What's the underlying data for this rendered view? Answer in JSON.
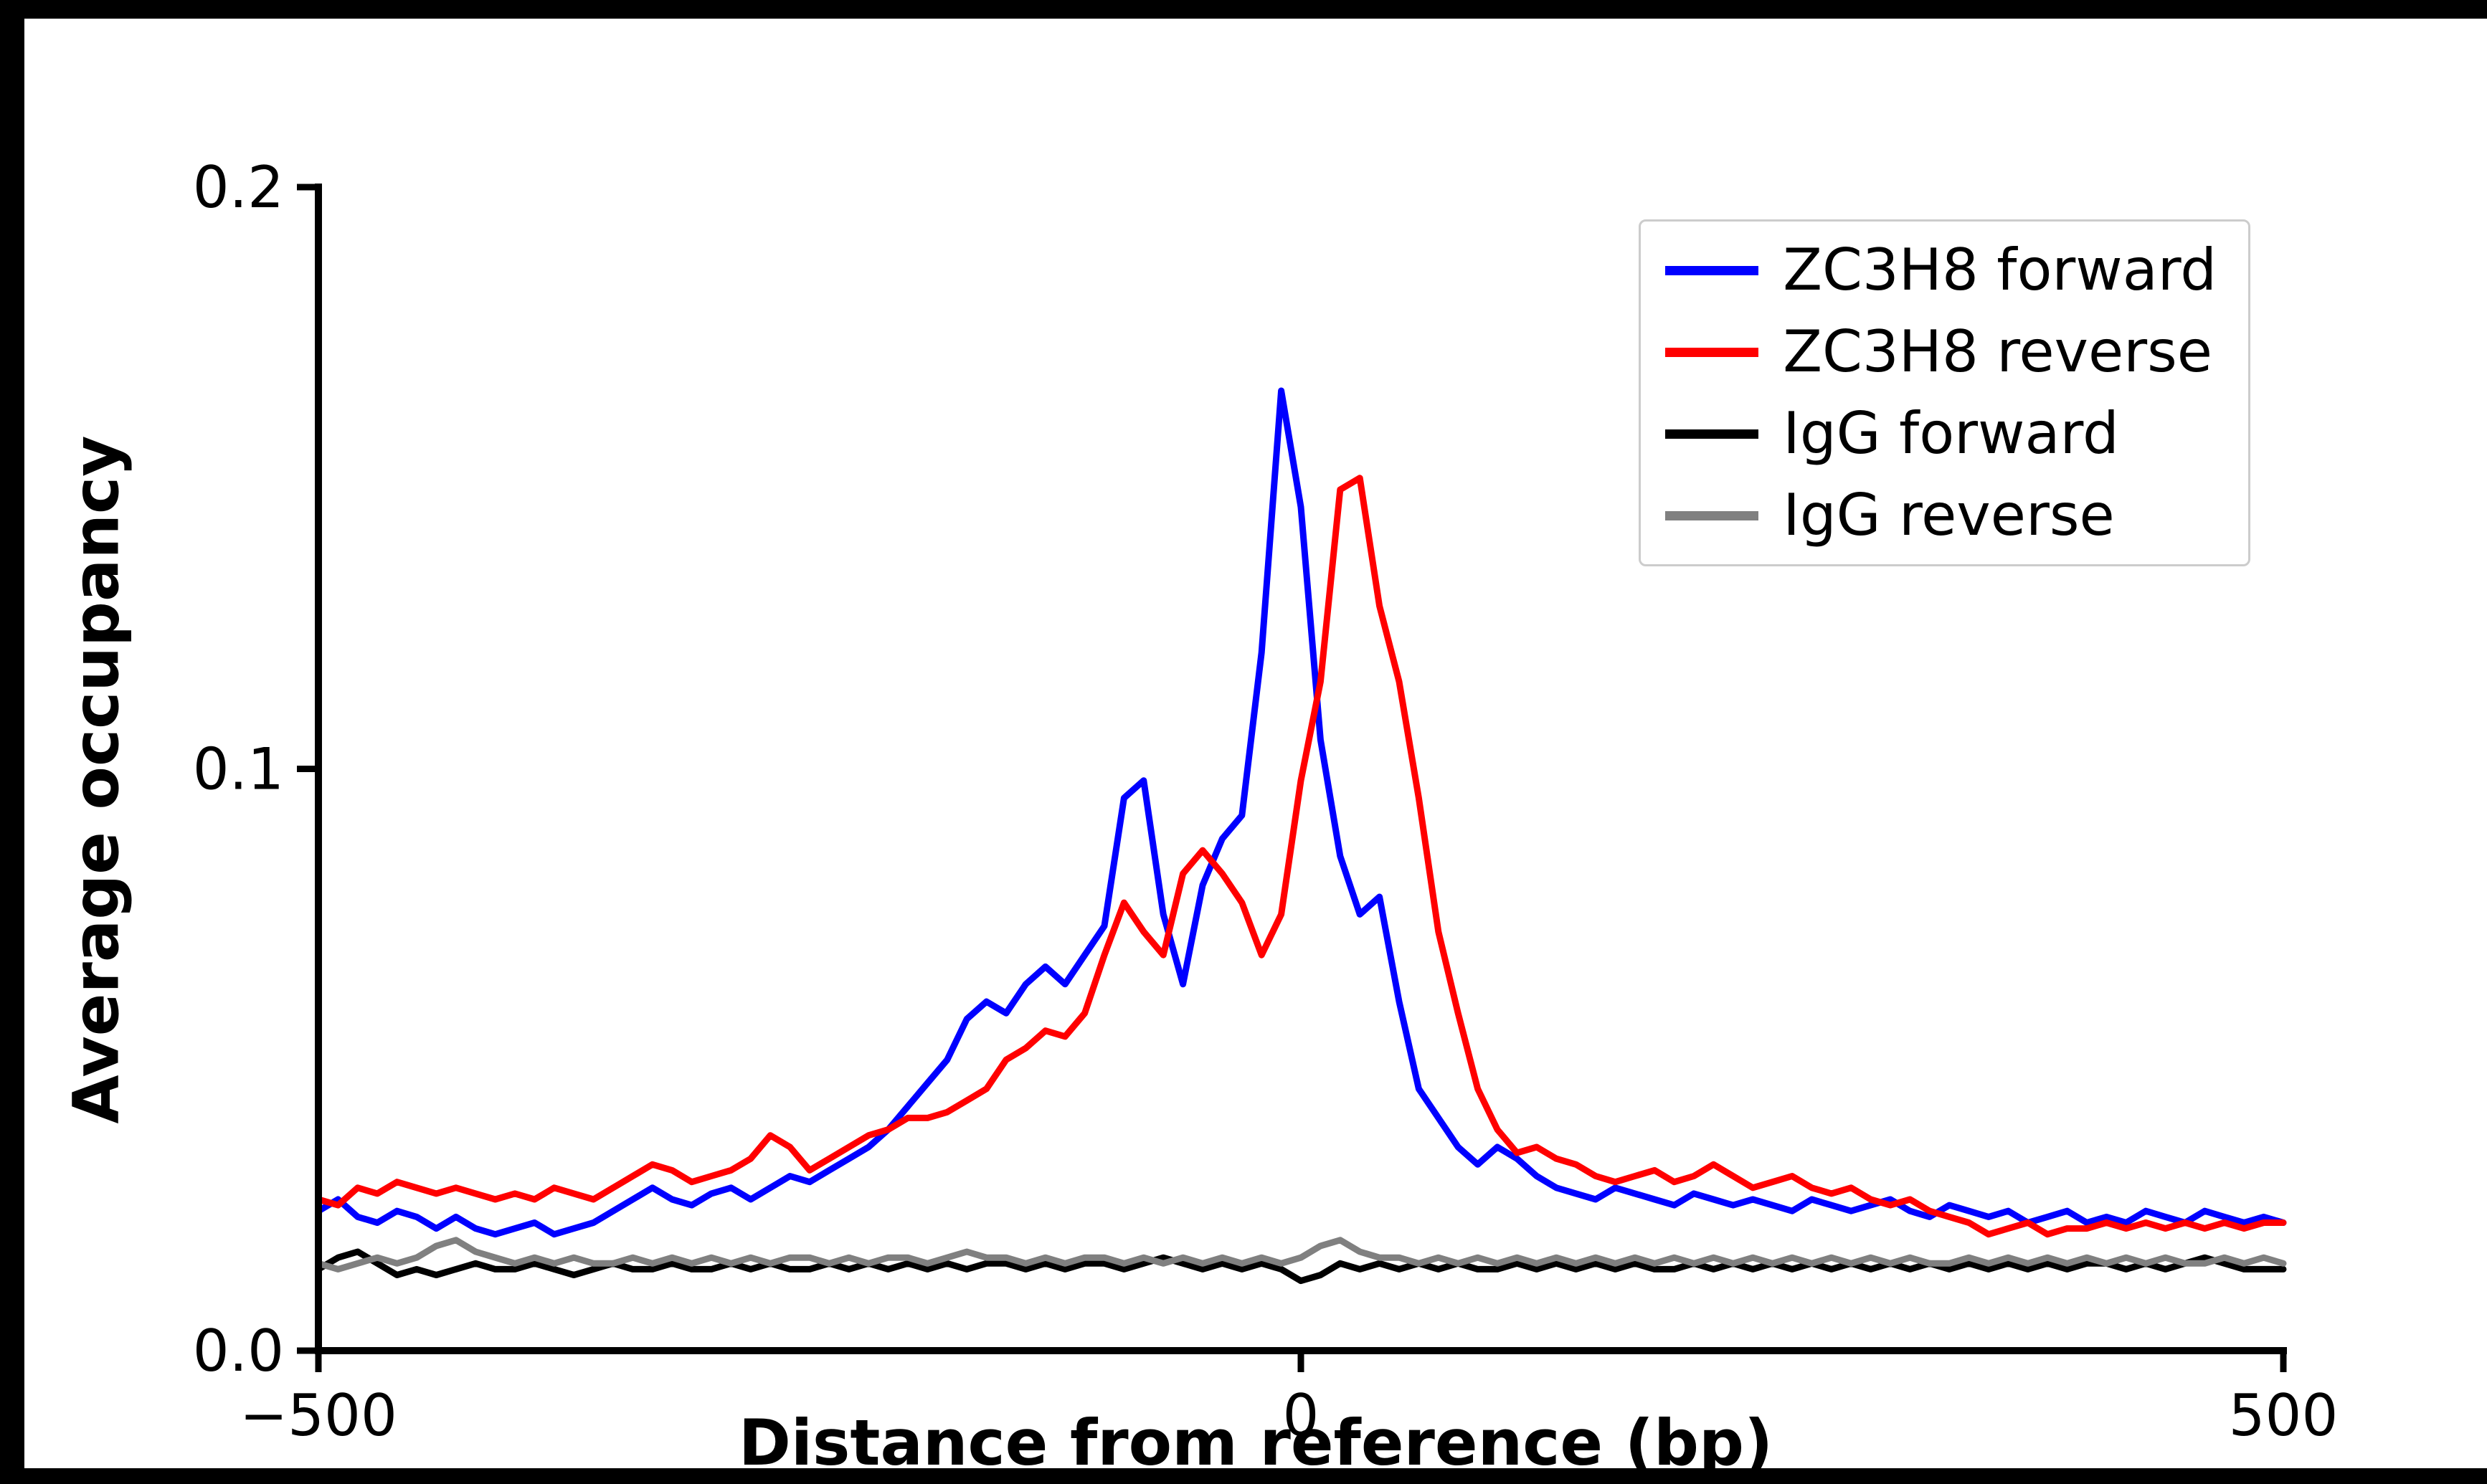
{
  "figure": {
    "background": "#ffffff",
    "frame_color": "#000000"
  },
  "chart_data": {
    "type": "line",
    "title": "",
    "xlabel": "Distance from reference (bp)",
    "ylabel": "Average occupancy",
    "xlim": [
      -500,
      500
    ],
    "ylim": [
      0,
      0.2
    ],
    "x_start": -500,
    "x_step": 10,
    "xticks": [
      -500,
      0,
      500
    ],
    "xtick_labels": [
      "−500",
      "0",
      "500"
    ],
    "yticks": [
      0,
      0.1,
      0.2
    ],
    "ytick_labels": [
      "0.0",
      "0.1",
      "0.2"
    ],
    "grid": false,
    "legend_position": "upper right",
    "series": [
      {
        "name": "ZC3H8 forward",
        "color": "#0000ff",
        "values": [
          0.024,
          0.026,
          0.023,
          0.022,
          0.024,
          0.023,
          0.021,
          0.023,
          0.021,
          0.02,
          0.021,
          0.022,
          0.02,
          0.021,
          0.022,
          0.024,
          0.026,
          0.028,
          0.026,
          0.025,
          0.027,
          0.028,
          0.026,
          0.028,
          0.03,
          0.029,
          0.031,
          0.033,
          0.035,
          0.038,
          0.042,
          0.046,
          0.05,
          0.057,
          0.06,
          0.058,
          0.063,
          0.066,
          0.063,
          0.068,
          0.073,
          0.095,
          0.098,
          0.075,
          0.063,
          0.08,
          0.088,
          0.092,
          0.12,
          0.165,
          0.145,
          0.105,
          0.085,
          0.075,
          0.078,
          0.06,
          0.045,
          0.04,
          0.035,
          0.032,
          0.035,
          0.033,
          0.03,
          0.028,
          0.027,
          0.026,
          0.028,
          0.027,
          0.026,
          0.025,
          0.027,
          0.026,
          0.025,
          0.026,
          0.025,
          0.024,
          0.026,
          0.025,
          0.024,
          0.025,
          0.026,
          0.024,
          0.023,
          0.025,
          0.024,
          0.023,
          0.024,
          0.022,
          0.023,
          0.024,
          0.022,
          0.023,
          0.022,
          0.024,
          0.023,
          0.022,
          0.024,
          0.023,
          0.022,
          0.023,
          0.022
        ]
      },
      {
        "name": "ZC3H8 reverse",
        "color": "#ff0000",
        "values": [
          0.026,
          0.025,
          0.028,
          0.027,
          0.029,
          0.028,
          0.027,
          0.028,
          0.027,
          0.026,
          0.027,
          0.026,
          0.028,
          0.027,
          0.026,
          0.028,
          0.03,
          0.032,
          0.031,
          0.029,
          0.03,
          0.031,
          0.033,
          0.037,
          0.035,
          0.031,
          0.033,
          0.035,
          0.037,
          0.038,
          0.04,
          0.04,
          0.041,
          0.043,
          0.045,
          0.05,
          0.052,
          0.055,
          0.054,
          0.058,
          0.068,
          0.077,
          0.072,
          0.068,
          0.082,
          0.086,
          0.082,
          0.077,
          0.068,
          0.075,
          0.098,
          0.115,
          0.148,
          0.15,
          0.128,
          0.115,
          0.095,
          0.072,
          0.058,
          0.045,
          0.038,
          0.034,
          0.035,
          0.033,
          0.032,
          0.03,
          0.029,
          0.03,
          0.031,
          0.029,
          0.03,
          0.032,
          0.03,
          0.028,
          0.029,
          0.03,
          0.028,
          0.027,
          0.028,
          0.026,
          0.025,
          0.026,
          0.024,
          0.023,
          0.022,
          0.02,
          0.021,
          0.022,
          0.02,
          0.021,
          0.021,
          0.022,
          0.021,
          0.022,
          0.021,
          0.022,
          0.021,
          0.022,
          0.021,
          0.022,
          0.022
        ]
      },
      {
        "name": "IgG forward",
        "color": "#000000",
        "values": [
          0.014,
          0.016,
          0.017,
          0.015,
          0.013,
          0.014,
          0.013,
          0.014,
          0.015,
          0.014,
          0.014,
          0.015,
          0.014,
          0.013,
          0.014,
          0.015,
          0.014,
          0.014,
          0.015,
          0.014,
          0.014,
          0.015,
          0.014,
          0.015,
          0.014,
          0.014,
          0.015,
          0.014,
          0.015,
          0.014,
          0.015,
          0.014,
          0.015,
          0.014,
          0.015,
          0.015,
          0.014,
          0.015,
          0.014,
          0.015,
          0.015,
          0.014,
          0.015,
          0.016,
          0.015,
          0.014,
          0.015,
          0.014,
          0.015,
          0.014,
          0.012,
          0.013,
          0.015,
          0.014,
          0.015,
          0.014,
          0.015,
          0.014,
          0.015,
          0.014,
          0.014,
          0.015,
          0.014,
          0.015,
          0.014,
          0.015,
          0.014,
          0.015,
          0.014,
          0.014,
          0.015,
          0.014,
          0.015,
          0.014,
          0.015,
          0.014,
          0.015,
          0.014,
          0.015,
          0.014,
          0.015,
          0.014,
          0.015,
          0.014,
          0.015,
          0.014,
          0.015,
          0.014,
          0.015,
          0.014,
          0.015,
          0.015,
          0.014,
          0.015,
          0.014,
          0.015,
          0.016,
          0.015,
          0.014,
          0.014,
          0.014
        ]
      },
      {
        "name": "IgG reverse",
        "color": "#808080",
        "values": [
          0.015,
          0.014,
          0.015,
          0.016,
          0.015,
          0.016,
          0.018,
          0.019,
          0.017,
          0.016,
          0.015,
          0.016,
          0.015,
          0.016,
          0.015,
          0.015,
          0.016,
          0.015,
          0.016,
          0.015,
          0.016,
          0.015,
          0.016,
          0.015,
          0.016,
          0.016,
          0.015,
          0.016,
          0.015,
          0.016,
          0.016,
          0.015,
          0.016,
          0.017,
          0.016,
          0.016,
          0.015,
          0.016,
          0.015,
          0.016,
          0.016,
          0.015,
          0.016,
          0.015,
          0.016,
          0.015,
          0.016,
          0.015,
          0.016,
          0.015,
          0.016,
          0.018,
          0.019,
          0.017,
          0.016,
          0.016,
          0.015,
          0.016,
          0.015,
          0.016,
          0.015,
          0.016,
          0.015,
          0.016,
          0.015,
          0.016,
          0.015,
          0.016,
          0.015,
          0.016,
          0.015,
          0.016,
          0.015,
          0.016,
          0.015,
          0.016,
          0.015,
          0.016,
          0.015,
          0.016,
          0.015,
          0.016,
          0.015,
          0.015,
          0.016,
          0.015,
          0.016,
          0.015,
          0.016,
          0.015,
          0.016,
          0.015,
          0.016,
          0.015,
          0.016,
          0.015,
          0.015,
          0.016,
          0.015,
          0.016,
          0.015
        ]
      }
    ]
  }
}
